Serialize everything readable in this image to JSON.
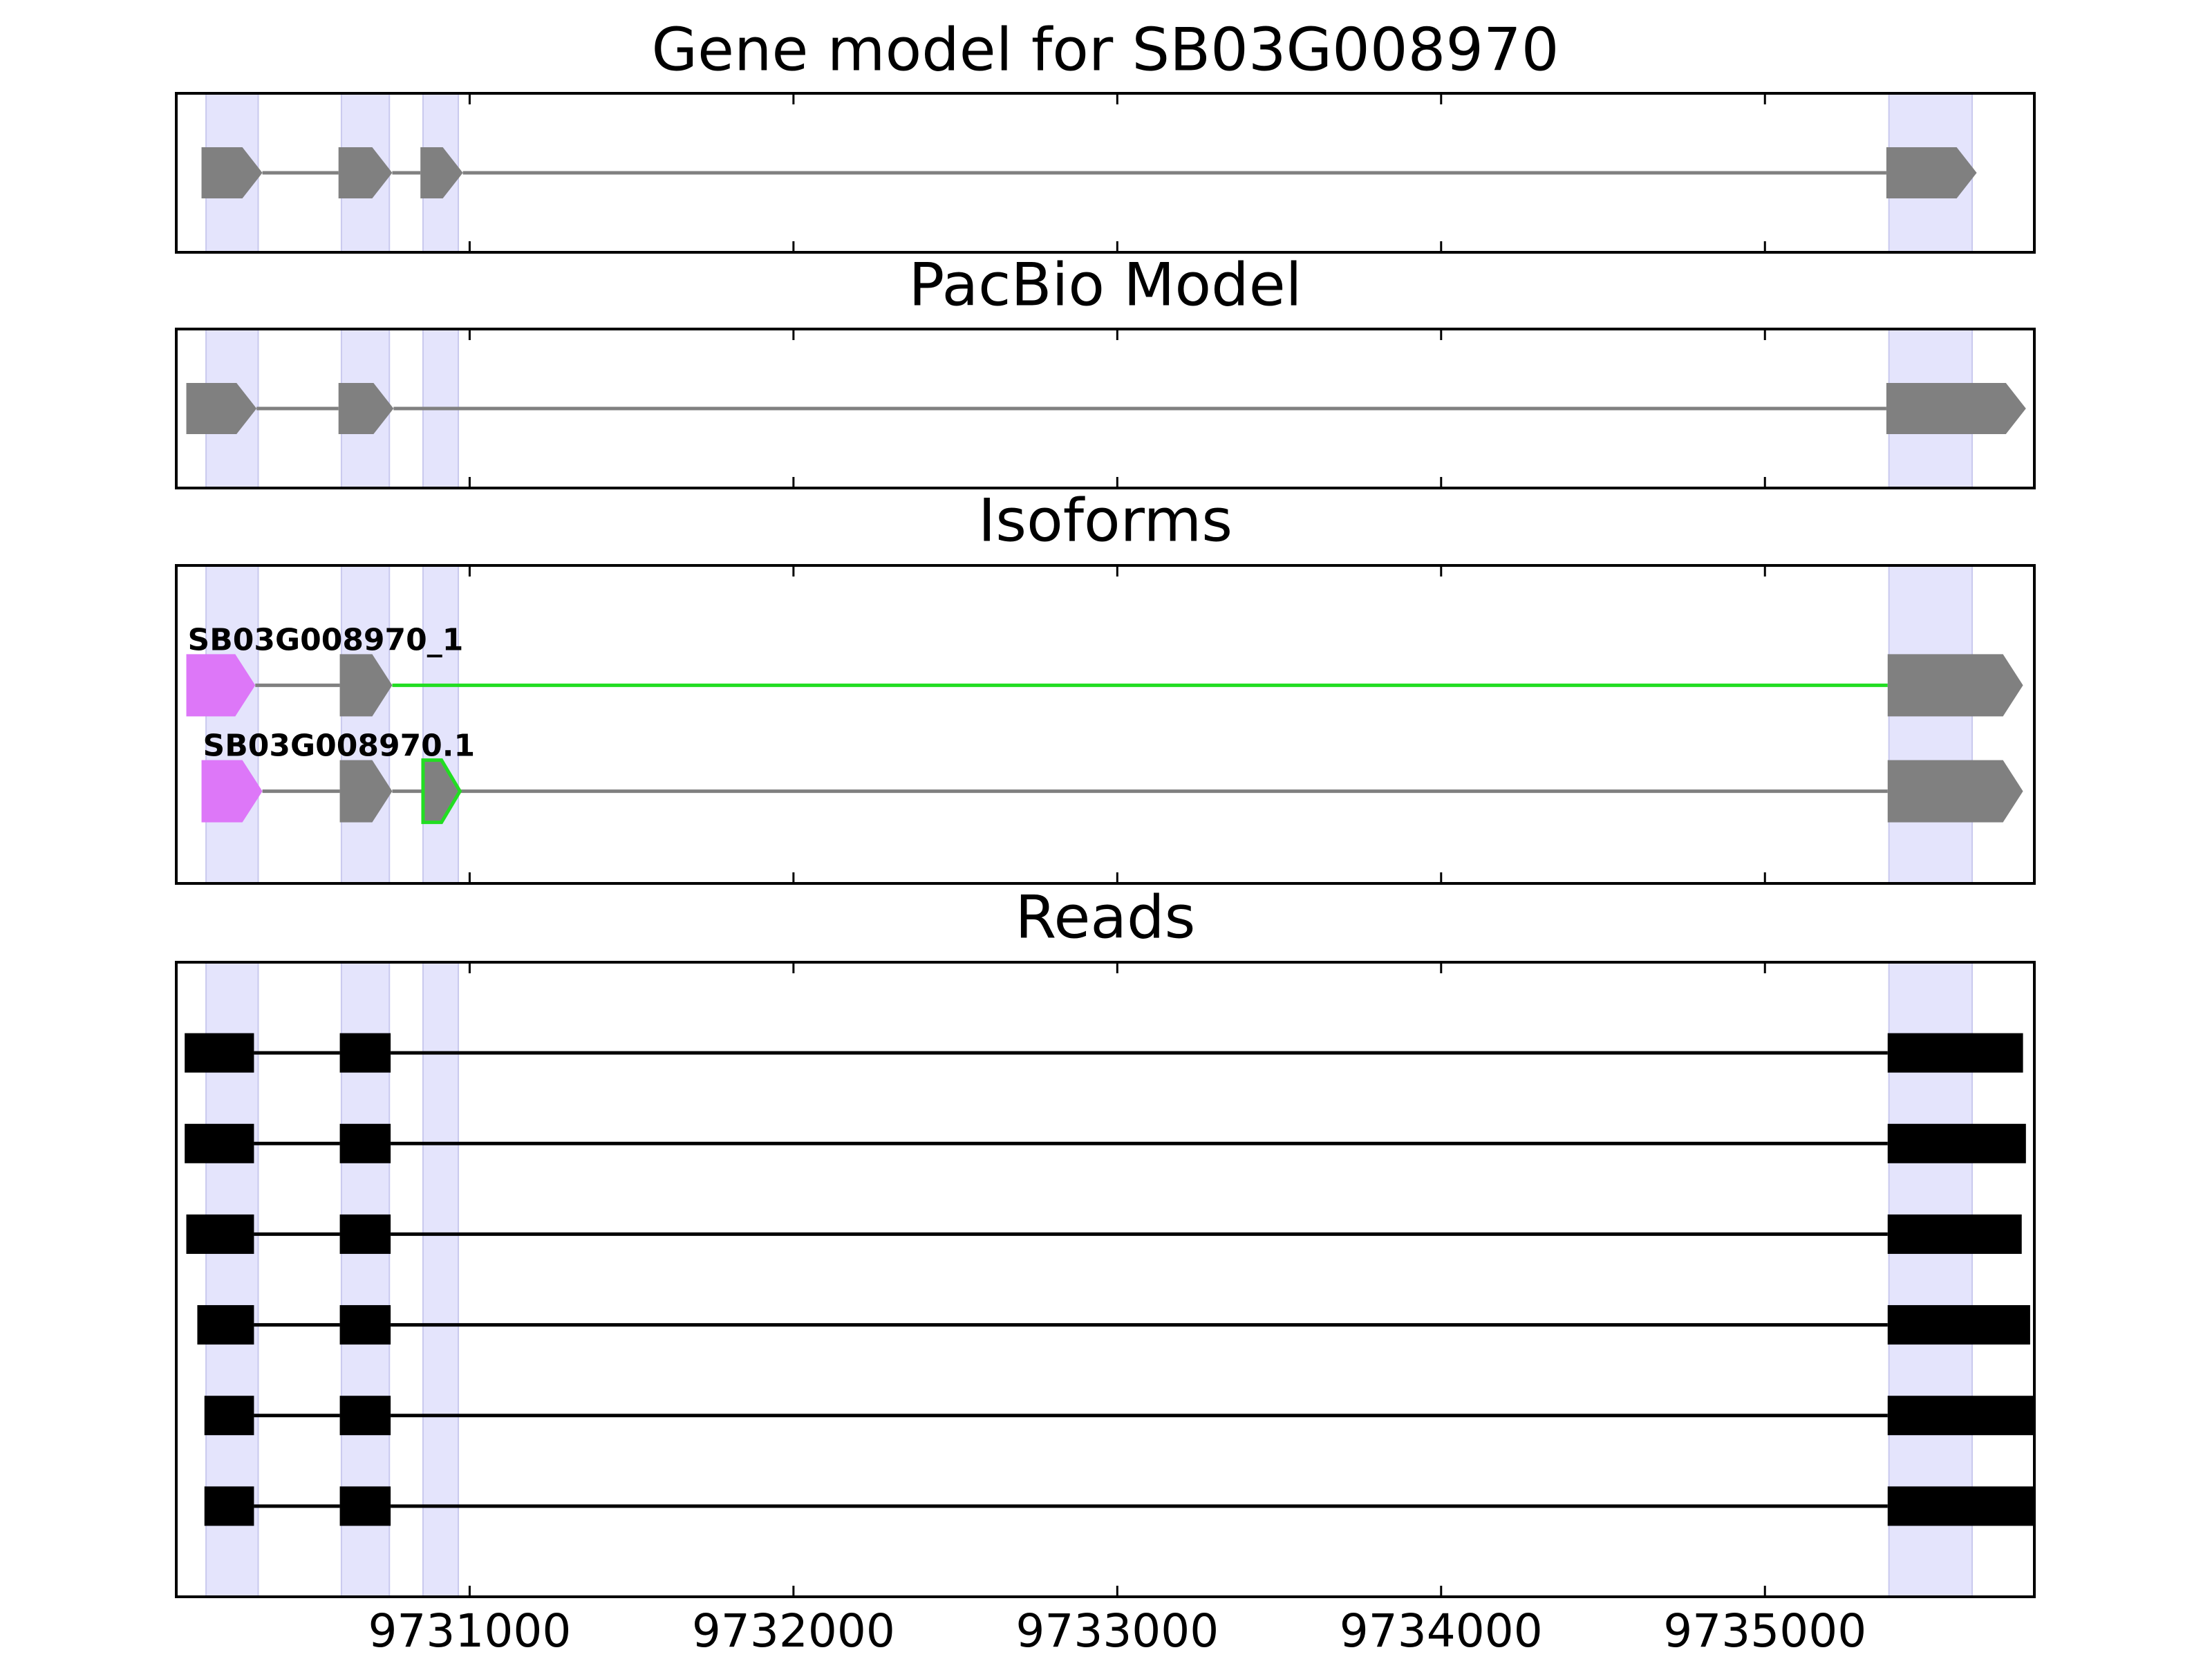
{
  "chart_data": [
    {
      "type": "gene_model",
      "title": "Gene model for SB03G008970",
      "xlim": [
        9730094,
        9735832
      ],
      "xticks": [
        9731000,
        9732000,
        9733000,
        9734000,
        9735000
      ],
      "highlights": [
        [
          9730186,
          9730347
        ],
        [
          9730604,
          9730752
        ],
        [
          9730856,
          9730965
        ],
        [
          9735383,
          9735640
        ]
      ],
      "highlight_color": "#e4e4fc",
      "tracks": [
        {
          "exons": [
            [
              9730172,
              9730360
            ],
            [
              9730595,
              9730761
            ],
            [
              9730848,
              9730979
            ],
            [
              9735375,
              9735654
            ]
          ],
          "exon_colors": [
            "#808080",
            "#808080",
            "#808080",
            "#808080"
          ],
          "intron_colors": [
            "#808080",
            "#808080",
            "#808080"
          ]
        }
      ]
    },
    {
      "type": "gene_model",
      "title": "PacBio Model",
      "xlim": [
        9730094,
        9735832
      ],
      "xticks": [
        9731000,
        9732000,
        9733000,
        9734000,
        9735000
      ],
      "highlights": [
        [
          9730186,
          9730347
        ],
        [
          9730604,
          9730752
        ],
        [
          9730856,
          9730965
        ],
        [
          9735383,
          9735640
        ]
      ],
      "highlight_color": "#e4e4fc",
      "tracks": [
        {
          "exons": [
            [
              9730125,
              9730342
            ],
            [
              9730595,
              9730765
            ],
            [
              9735375,
              9735806
            ]
          ],
          "exon_colors": [
            "#808080",
            "#808080",
            "#808080"
          ],
          "intron_colors": [
            "#808080",
            "#808080"
          ]
        }
      ]
    },
    {
      "type": "gene_model",
      "title": "Isoforms",
      "xlim": [
        9730094,
        9735832
      ],
      "xticks": [
        9731000,
        9732000,
        9733000,
        9734000,
        9735000
      ],
      "highlights": [
        [
          9730186,
          9730347
        ],
        [
          9730604,
          9730752
        ],
        [
          9730856,
          9730965
        ],
        [
          9735383,
          9735640
        ]
      ],
      "highlight_color": "#e4e4fc",
      "tracks": [
        {
          "name": "SB03G008970_1",
          "exons": [
            [
              9730125,
              9730338
            ],
            [
              9730599,
              9730761
            ],
            [
              9735379,
              9735797
            ]
          ],
          "exon_colors": [
            "#dd77f8",
            "#808080",
            "#808080"
          ],
          "intron_colors": [
            "#808080",
            "#22dd22"
          ]
        },
        {
          "name": "SB03G008970.1",
          "exons": [
            [
              9730172,
              9730360
            ],
            [
              9730599,
              9730761
            ],
            [
              9730856,
              9730970
            ],
            [
              9735379,
              9735797
            ]
          ],
          "exon_colors": [
            "#dd77f8",
            "#808080",
            "#808080",
            "#808080"
          ],
          "exon_edge_colors": [
            null,
            null,
            "#22dd22",
            null
          ],
          "intron_colors": [
            "#808080",
            "#808080",
            "#808080"
          ]
        }
      ]
    },
    {
      "type": "reads",
      "title": "Reads",
      "xlim": [
        9730094,
        9735832
      ],
      "xticks": [
        9731000,
        9732000,
        9733000,
        9734000,
        9735000
      ],
      "highlights": [
        [
          9730186,
          9730347
        ],
        [
          9730604,
          9730752
        ],
        [
          9730856,
          9730965
        ],
        [
          9735383,
          9735640
        ]
      ],
      "highlight_color": "#e4e4fc",
      "color": "#000000",
      "tracks": [
        {
          "exons": [
            [
              9730120,
              9730334
            ],
            [
              9730599,
              9730756
            ],
            [
              9735379,
              9735797
            ]
          ]
        },
        {
          "exons": [
            [
              9730120,
              9730334
            ],
            [
              9730599,
              9730756
            ],
            [
              9735379,
              9735806
            ]
          ]
        },
        {
          "exons": [
            [
              9730125,
              9730334
            ],
            [
              9730599,
              9730756
            ],
            [
              9735379,
              9735793
            ]
          ]
        },
        {
          "exons": [
            [
              9730159,
              9730334
            ],
            [
              9730599,
              9730756
            ],
            [
              9735379,
              9735819
            ]
          ]
        },
        {
          "exons": [
            [
              9730181,
              9730334
            ],
            [
              9730599,
              9730756
            ],
            [
              9735379,
              9735832
            ]
          ]
        },
        {
          "exons": [
            [
              9730181,
              9730334
            ],
            [
              9730599,
              9730756
            ],
            [
              9735379,
              9735832
            ]
          ]
        }
      ]
    }
  ]
}
